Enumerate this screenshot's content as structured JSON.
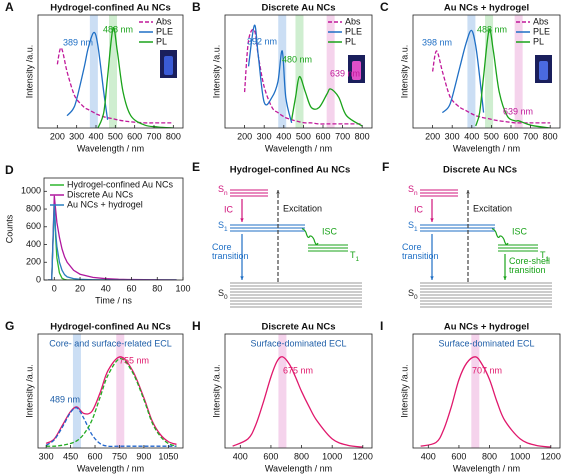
{
  "chart_data": [
    {
      "type": "line",
      "panel_label": "A",
      "title": "Hydrogel-confined Au NCs",
      "x_label": "Wavelength / nm",
      "y_label": "Intensity /a.u.",
      "smooth": true,
      "xlim": [
        100,
        850
      ],
      "xticks": [
        200,
        300,
        400,
        500,
        600,
        700,
        800
      ],
      "ylim": [
        0,
        1.1
      ],
      "x": [
        200,
        220,
        250,
        280,
        300,
        340,
        360,
        389,
        410,
        440,
        460,
        488,
        510,
        540,
        580,
        650,
        720,
        800
      ],
      "series": [
        {
          "name": "Abs",
          "color": "#c0189a",
          "dashed": true,
          "values": [
            0.62,
            0.78,
            0.55,
            0.36,
            0.28,
            0.2,
            0.18,
            0.15,
            0.13,
            0.11,
            0.1,
            0.09,
            0.08,
            0.07,
            0.06,
            0.05,
            0.05,
            0.05
          ]
        },
        {
          "name": "PLE",
          "color": "#1f6fc5",
          "values": [
            null,
            null,
            0.12,
            0.18,
            0.28,
            0.6,
            0.78,
            0.93,
            0.8,
            0.35,
            0.08,
            null,
            null,
            null,
            null,
            null,
            null,
            null
          ]
        },
        {
          "name": "PL",
          "color": "#1aa31a",
          "values": [
            null,
            null,
            null,
            null,
            null,
            null,
            null,
            null,
            0.0,
            0.15,
            0.5,
            0.97,
            0.75,
            0.35,
            0.12,
            0.03,
            0.01,
            0.0
          ]
        }
      ],
      "bands": [
        {
          "value": 389,
          "color": "#b9d3f0"
        },
        {
          "value": 488,
          "color": "#bfe8c0"
        }
      ],
      "annotations": [
        {
          "text": "389 nm",
          "color": "#1f6fc5"
        },
        {
          "text": "488 nm",
          "color": "#1aa31a"
        }
      ]
    },
    {
      "type": "line",
      "panel_label": "B",
      "title": "Discrete Au NCs",
      "x_label": "Wavelength / nm",
      "y_label": "Intensity /a.u.",
      "smooth": true,
      "xlim": [
        100,
        850
      ],
      "xticks": [
        200,
        300,
        400,
        500,
        600,
        700,
        800
      ],
      "ylim": [
        0,
        1.1
      ],
      "x": [
        200,
        220,
        250,
        270,
        300,
        340,
        370,
        392,
        410,
        440,
        460,
        480,
        510,
        540,
        580,
        620,
        639,
        680,
        720,
        800
      ],
      "series": [
        {
          "name": "Abs",
          "color": "#c0189a",
          "dashed": true,
          "values": [
            0.35,
            0.85,
            0.95,
            0.7,
            0.4,
            0.2,
            0.15,
            0.12,
            0.1,
            0.08,
            0.07,
            0.06,
            0.05,
            0.05,
            0.04,
            0.04,
            0.04,
            0.04,
            0.04,
            0.04
          ]
        },
        {
          "name": "PLE",
          "color": "#1f6fc5",
          "values": [
            null,
            0.6,
            1.0,
            0.7,
            0.25,
            0.3,
            0.45,
            0.75,
            0.3,
            0.05,
            null,
            null,
            null,
            null,
            null,
            null,
            null,
            null,
            null,
            null
          ]
        },
        {
          "name": "PL",
          "color": "#1aa31a",
          "values": [
            null,
            null,
            null,
            null,
            null,
            null,
            null,
            null,
            null,
            0.08,
            0.3,
            0.5,
            0.35,
            0.2,
            0.2,
            0.33,
            0.38,
            0.3,
            0.12,
            0.02
          ]
        }
      ],
      "bands": [
        {
          "value": 392,
          "color": "#b9d3f0"
        },
        {
          "value": 480,
          "color": "#bfe8c0"
        },
        {
          "value": 639,
          "color": "#f2c4e6"
        }
      ],
      "annotations": [
        {
          "text": "392 nm",
          "color": "#1f6fc5"
        },
        {
          "text": "480 nm",
          "color": "#1aa31a"
        },
        {
          "text": "639 nm",
          "color": "#c0189a"
        }
      ]
    },
    {
      "type": "line",
      "panel_label": "C",
      "title": "Au NCs + hydrogel",
      "x_label": "Wavelength / nm",
      "y_label": "Intensity /a.u.",
      "smooth": true,
      "xlim": [
        100,
        850
      ],
      "xticks": [
        200,
        300,
        400,
        500,
        600,
        700,
        800
      ],
      "ylim": [
        0,
        1.1
      ],
      "x": [
        200,
        220,
        250,
        280,
        300,
        340,
        370,
        398,
        420,
        440,
        460,
        488,
        510,
        540,
        580,
        620,
        639,
        680,
        720,
        800
      ],
      "series": [
        {
          "name": "Abs",
          "color": "#c0189a",
          "dashed": true,
          "values": [
            0.55,
            0.75,
            0.55,
            0.35,
            0.27,
            0.2,
            0.17,
            0.14,
            0.12,
            0.11,
            0.1,
            0.09,
            0.08,
            0.07,
            0.06,
            0.05,
            0.05,
            0.05,
            0.05,
            0.05
          ]
        },
        {
          "name": "PLE",
          "color": "#1f6fc5",
          "values": [
            null,
            null,
            0.15,
            0.2,
            0.3,
            0.6,
            0.82,
            0.95,
            0.8,
            0.5,
            0.15,
            null,
            null,
            null,
            null,
            null,
            null,
            null,
            null,
            null
          ]
        },
        {
          "name": "PL",
          "color": "#1aa31a",
          "values": [
            null,
            null,
            null,
            null,
            null,
            null,
            null,
            null,
            0.02,
            0.15,
            0.5,
            0.95,
            0.75,
            0.35,
            0.12,
            0.07,
            0.07,
            0.04,
            0.02,
            0.0
          ]
        }
      ],
      "bands": [
        {
          "value": 398,
          "color": "#b9d3f0"
        },
        {
          "value": 488,
          "color": "#bfe8c0"
        },
        {
          "value": 639,
          "color": "#f2c4e6"
        }
      ],
      "annotations": [
        {
          "text": "398 nm",
          "color": "#1f6fc5"
        },
        {
          "text": "488 nm",
          "color": "#1aa31a"
        },
        {
          "text": "639 nm",
          "color": "#c0189a"
        }
      ]
    },
    {
      "type": "line",
      "panel_label": "D",
      "x_label": "Time / ns",
      "y_label": "Counts",
      "smooth": false,
      "xlim": [
        -8,
        100
      ],
      "xticks": [
        0,
        20,
        40,
        60,
        80,
        100
      ],
      "ylim": [
        0,
        1150
      ],
      "yticks": [
        0,
        200,
        400,
        600,
        800,
        1000
      ],
      "x": [
        -5,
        -2,
        0,
        1,
        2,
        4,
        6,
        8,
        10,
        15,
        20,
        30,
        40,
        50,
        60,
        80,
        95
      ],
      "series": [
        {
          "name": "Hydrogel-confined Au NCs",
          "color": "#2db52d",
          "values": [
            0,
            0,
            900,
            500,
            250,
            80,
            20,
            5,
            0,
            0,
            0,
            0,
            0,
            0,
            0,
            0,
            0
          ]
        },
        {
          "name": "Discrete Au NCs",
          "color": "#b0179e",
          "values": [
            0,
            0,
            950,
            800,
            650,
            480,
            350,
            260,
            200,
            110,
            65,
            30,
            15,
            8,
            5,
            2,
            1
          ]
        },
        {
          "name": "Au NCs + hydrogel",
          "color": "#2a7fc0",
          "values": [
            0,
            0,
            850,
            550,
            380,
            200,
            110,
            60,
            35,
            15,
            8,
            3,
            1,
            0,
            0,
            0,
            0
          ]
        }
      ]
    },
    {
      "type": "line",
      "panel_label": "G",
      "title": "Hydrogel-confined Au NCs",
      "subtitle": "Core- and surface-related ECL",
      "x_label": "Wavelength / nm",
      "y_label": "Intensity /a.u.",
      "smooth": true,
      "xlim": [
        250,
        1140
      ],
      "xticks": [
        300,
        450,
        600,
        750,
        900,
        1050
      ],
      "ylim": [
        0,
        1.25
      ],
      "x": [
        300,
        350,
        400,
        450,
        489,
        530,
        580,
        630,
        680,
        755,
        830,
        900,
        950,
        1000,
        1050,
        1100
      ],
      "series": [
        {
          "color": "#e0186c",
          "values": [
            0.05,
            0.1,
            0.25,
            0.4,
            0.45,
            0.38,
            0.4,
            0.6,
            0.85,
            1.0,
            0.85,
            0.55,
            0.3,
            0.15,
            0.07,
            0.04
          ]
        },
        {
          "color": "#2266cc",
          "dashed": true,
          "values": [
            0.03,
            0.09,
            0.23,
            0.39,
            0.44,
            0.33,
            0.15,
            0.05,
            0.02,
            0.02,
            0.02,
            0.02,
            0.02,
            0.02,
            0.02,
            0.02
          ]
        },
        {
          "color": "#22aa22",
          "dashed": true,
          "values": [
            0.02,
            0.02,
            0.03,
            0.05,
            0.08,
            0.15,
            0.3,
            0.55,
            0.8,
            0.98,
            0.83,
            0.53,
            0.28,
            0.13,
            0.05,
            0.02
          ]
        }
      ],
      "bands": [
        {
          "value": 489,
          "color": "#b9d3f0"
        },
        {
          "value": 755,
          "color": "#f2c4e6"
        }
      ],
      "annotations": [
        {
          "text": "489 nm",
          "color": "#1f5fa8"
        },
        {
          "text": "755 nm",
          "color": "#e0186c"
        }
      ]
    },
    {
      "type": "line",
      "panel_label": "H",
      "title": "Discrete Au NCs",
      "subtitle": "Surface-dominated ECL",
      "x_label": "Wavelength / nm",
      "y_label": "Intensity /a.u.",
      "smooth": true,
      "xlim": [
        300,
        1260
      ],
      "xticks": [
        400,
        600,
        800,
        1000,
        1200
      ],
      "ylim": [
        0,
        1.25
      ],
      "x": [
        350,
        450,
        500,
        550,
        600,
        640,
        675,
        720,
        760,
        800,
        850,
        900,
        1000,
        1100,
        1200
      ],
      "series": [
        {
          "color": "#e0186c",
          "values": [
            0.02,
            0.1,
            0.25,
            0.5,
            0.78,
            0.95,
            1.0,
            0.92,
            0.78,
            0.62,
            0.45,
            0.3,
            0.1,
            0.03,
            0.01
          ]
        }
      ],
      "bands": [
        {
          "value": 675,
          "color": "#f2c4e6"
        }
      ],
      "annotations": [
        {
          "text": "675 nm",
          "color": "#e0186c"
        }
      ]
    },
    {
      "type": "line",
      "panel_label": "I",
      "title": "Au NCs + hydrogel",
      "subtitle": "Surface-dominated ECL",
      "x_label": "Wavelength / nm",
      "y_label": "Intensity /a.u.",
      "smooth": true,
      "xlim": [
        300,
        1260
      ],
      "xticks": [
        400,
        600,
        800,
        1000,
        1200
      ],
      "ylim": [
        0,
        1.25
      ],
      "x": [
        350,
        450,
        500,
        550,
        600,
        650,
        707,
        750,
        800,
        850,
        900,
        1000,
        1100,
        1200
      ],
      "series": [
        {
          "color": "#e0186c",
          "values": [
            0.02,
            0.06,
            0.2,
            0.45,
            0.75,
            0.93,
            1.0,
            0.92,
            0.75,
            0.5,
            0.3,
            0.1,
            0.03,
            0.01
          ]
        }
      ],
      "bands": [
        {
          "value": 707,
          "color": "#f2c4e6"
        }
      ],
      "annotations": [
        {
          "text": "707 nm",
          "color": "#e0186c"
        }
      ]
    }
  ],
  "diagrams": [
    {
      "panel_label": "E",
      "title": "Hydrogel-confined Au NCs",
      "sn": {
        "main": "S",
        "sub": "n"
      },
      "ic": "IC",
      "excitation": "Excitation",
      "s1": {
        "main": "S",
        "sub": "1"
      },
      "isc": "ISC",
      "t1": {
        "main": "T",
        "sub": "1"
      },
      "core": [
        "Core",
        "transition"
      ],
      "s0": {
        "main": "S",
        "sub": "0"
      }
    },
    {
      "panel_label": "F",
      "title": "Discrete Au NCs",
      "sn": {
        "main": "S",
        "sub": "n"
      },
      "ic": "IC",
      "excitation": "Excitation",
      "s1": {
        "main": "S",
        "sub": "1"
      },
      "isc": "ISC",
      "t1": {
        "main": "T",
        "sub": "1"
      },
      "core": [
        "Core",
        "transition"
      ],
      "s0": {
        "main": "S",
        "sub": "0"
      },
      "core_shell": [
        "Core-shell",
        "transition"
      ]
    }
  ]
}
